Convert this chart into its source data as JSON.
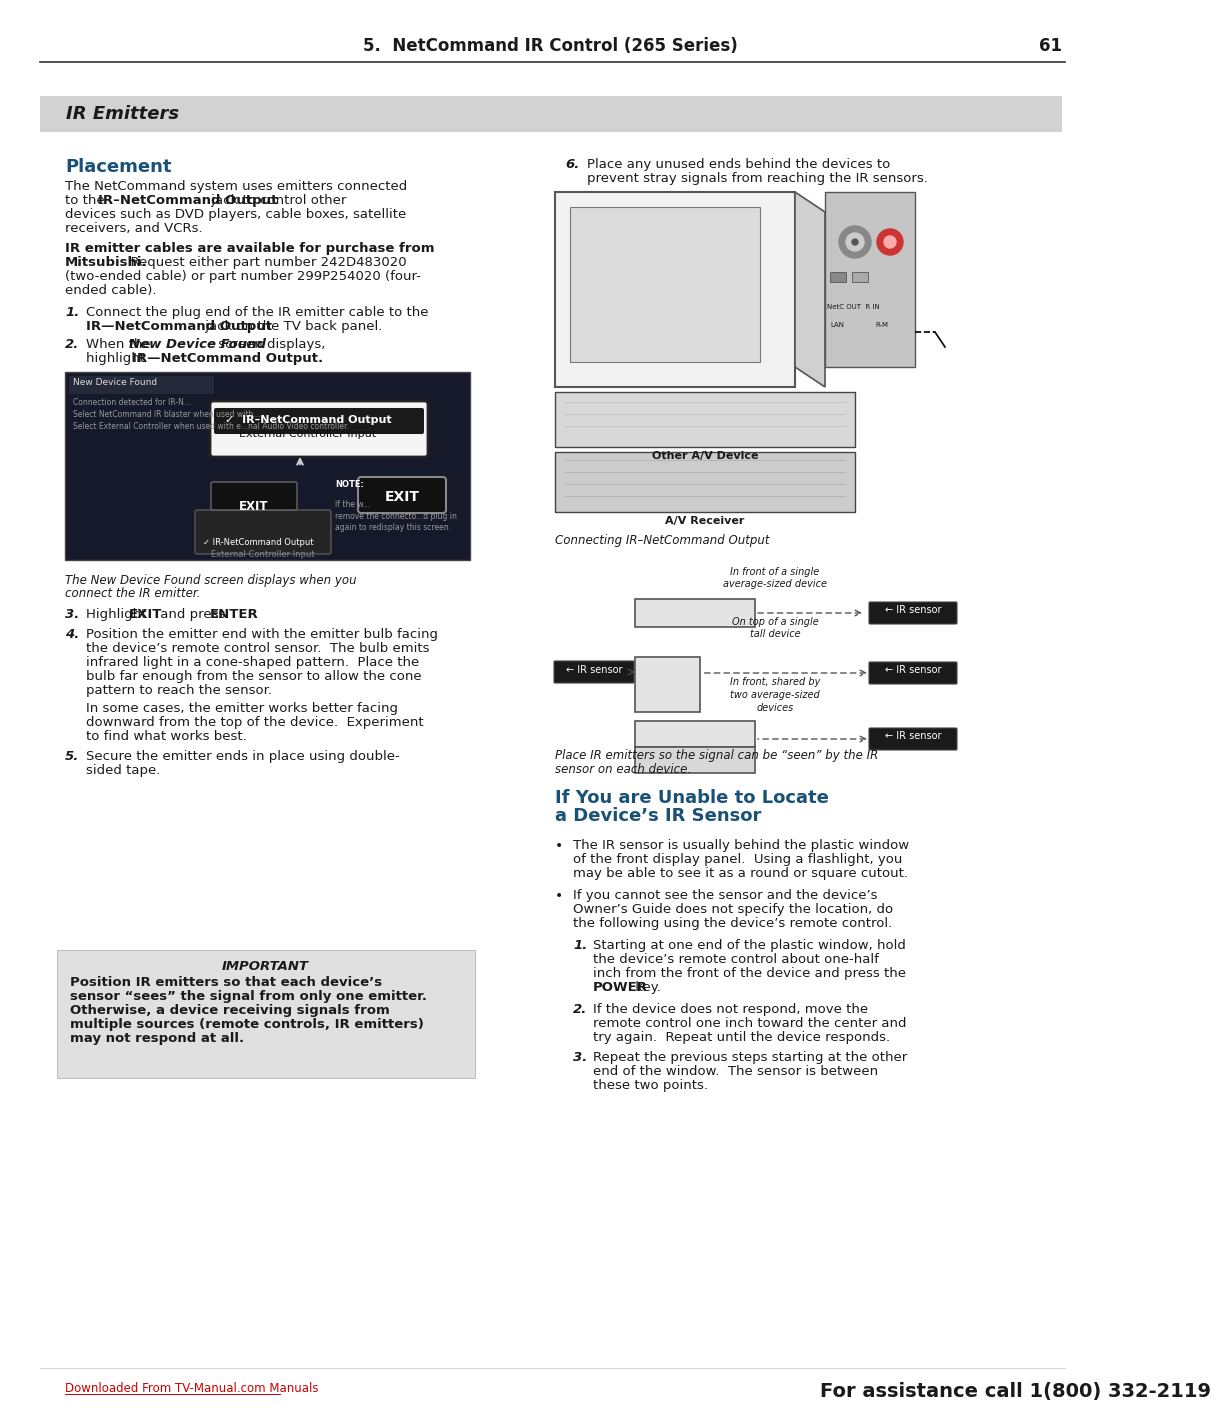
{
  "page_title": "5.  NetCommand IR Control (265 Series)",
  "page_number": "61",
  "section_header": "IR Emitters",
  "subsection1": "Placement",
  "subsection2_line1": "If You are Unable to Locate",
  "subsection2_line2": "a Device’s IR Sensor",
  "footer_link": "Downloaded From TV-Manual.com Manuals",
  "footer_call": "For assistance call 1(800) 332-2119",
  "bg_color": "#ffffff",
  "blue_color": "#1a5276",
  "dark_color": "#1a1a1a",
  "red_color": "#cc0000",
  "body_fs": 9.5
}
